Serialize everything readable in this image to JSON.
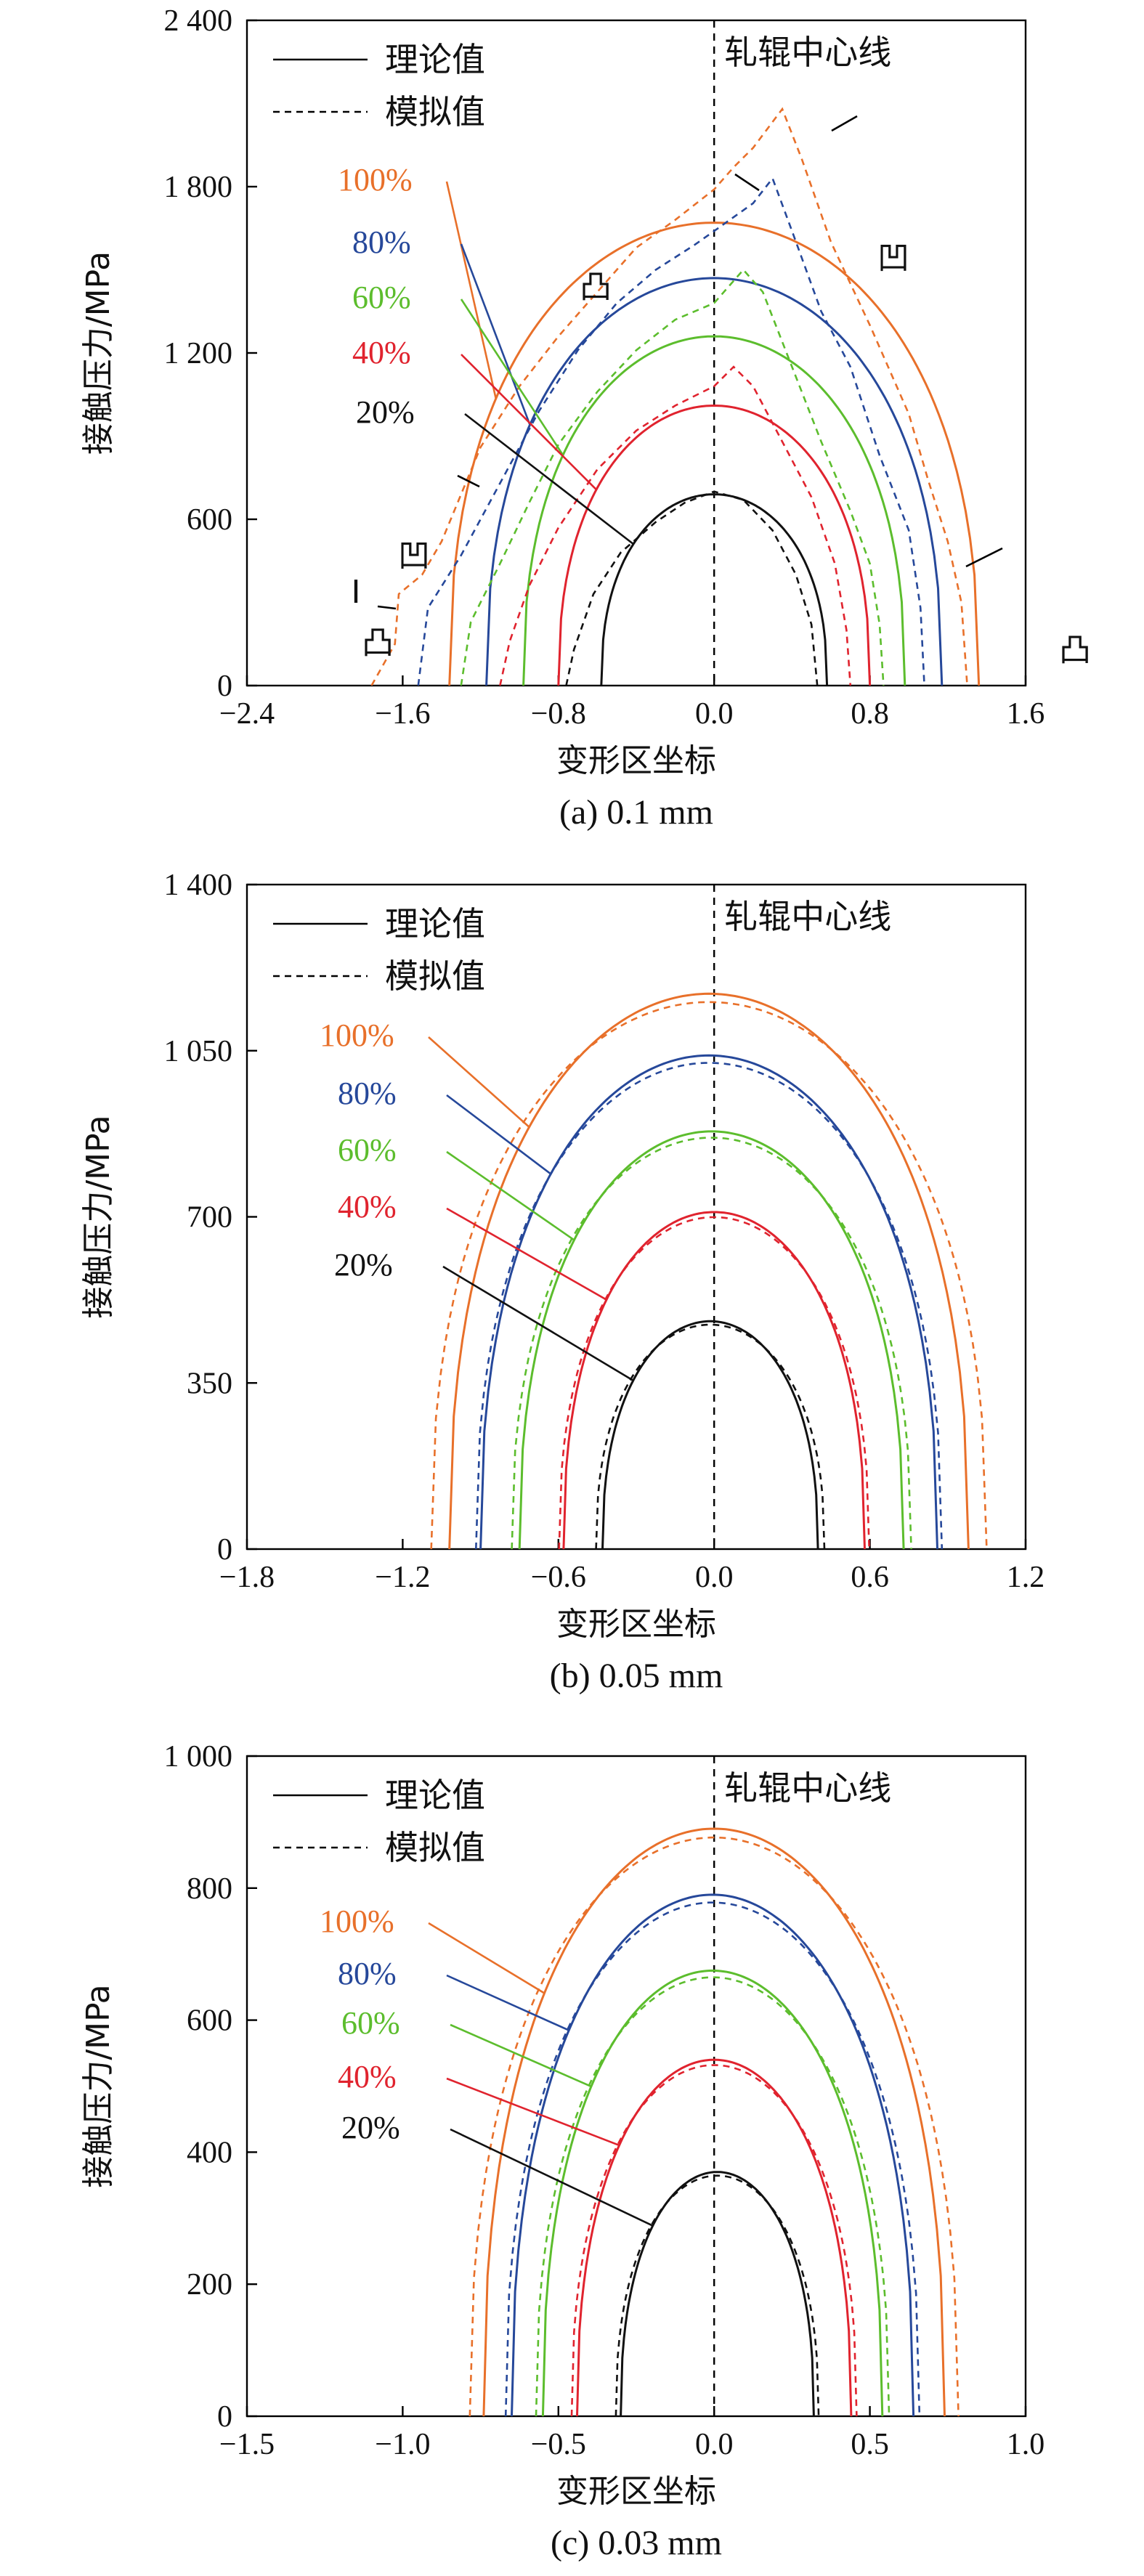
{
  "colors": {
    "100%": "#e8702a",
    "80%": "#26489a",
    "60%": "#5cbd2d",
    "40%": "#e0232e",
    "20%": "#111111",
    "axis": "#000000"
  },
  "chart_data": [
    {
      "type": "line",
      "caption": "(a) 0.1 mm",
      "xlabel": "变形区坐标",
      "ylabel": "接触压力/MPa",
      "xlim": [
        -2.4,
        1.6
      ],
      "ylim": [
        0,
        2400
      ],
      "xticks": [
        "−2.4",
        "−1.6",
        "−0.8",
        "0.0",
        "0.8",
        "1.6"
      ],
      "yticks": [
        "0",
        "600",
        "1 200",
        "1 800",
        "2 400"
      ],
      "legend": {
        "solid": "理论值",
        "dashed": "模拟值"
      },
      "center_label": "轧辊中心线",
      "annotations": [
        "凸",
        "凹",
        "凸",
        "凹",
        "凸",
        "I"
      ],
      "series": [
        {
          "name": "100%",
          "theoretical": {
            "xmin": -1.36,
            "xmax": 1.36,
            "peak": 1670
          },
          "simulated": [
            [
              -1.76,
              0
            ],
            [
              -1.64,
              150
            ],
            [
              -1.62,
              330
            ],
            [
              -1.5,
              400
            ],
            [
              -1.4,
              520
            ],
            [
              -1.2,
              860
            ],
            [
              -1.0,
              1080
            ],
            [
              -0.8,
              1260
            ],
            [
              -0.6,
              1420
            ],
            [
              -0.4,
              1580
            ],
            [
              -0.2,
              1680
            ],
            [
              0.0,
              1790
            ],
            [
              0.1,
              1870
            ],
            [
              0.2,
              1940
            ],
            [
              0.35,
              2080
            ],
            [
              0.45,
              1900
            ],
            [
              0.6,
              1600
            ],
            [
              0.8,
              1300
            ],
            [
              1.0,
              980
            ],
            [
              1.1,
              740
            ],
            [
              1.2,
              520
            ],
            [
              1.27,
              300
            ],
            [
              1.3,
              0
            ]
          ]
        },
        {
          "name": "80%",
          "theoretical": {
            "xmin": -1.17,
            "xmax": 1.17,
            "peak": 1470
          },
          "simulated": [
            [
              -1.52,
              0
            ],
            [
              -1.47,
              280
            ],
            [
              -1.3,
              470
            ],
            [
              -1.1,
              730
            ],
            [
              -0.9,
              990
            ],
            [
              -0.7,
              1210
            ],
            [
              -0.5,
              1380
            ],
            [
              -0.3,
              1500
            ],
            [
              -0.1,
              1590
            ],
            [
              0.0,
              1640
            ],
            [
              0.2,
              1740
            ],
            [
              0.3,
              1830
            ],
            [
              0.4,
              1640
            ],
            [
              0.55,
              1350
            ],
            [
              0.7,
              1150
            ],
            [
              0.85,
              830
            ],
            [
              1.0,
              560
            ],
            [
              1.06,
              280
            ],
            [
              1.08,
              0
            ]
          ]
        },
        {
          "name": "60%",
          "theoretical": {
            "xmin": -0.98,
            "xmax": 0.98,
            "peak": 1260
          },
          "simulated": [
            [
              -1.3,
              0
            ],
            [
              -1.25,
              230
            ],
            [
              -1.1,
              440
            ],
            [
              -0.95,
              660
            ],
            [
              -0.8,
              870
            ],
            [
              -0.6,
              1060
            ],
            [
              -0.4,
              1210
            ],
            [
              -0.2,
              1320
            ],
            [
              0.0,
              1380
            ],
            [
              0.15,
              1500
            ],
            [
              0.25,
              1420
            ],
            [
              0.4,
              1150
            ],
            [
              0.55,
              880
            ],
            [
              0.7,
              630
            ],
            [
              0.8,
              440
            ],
            [
              0.85,
              220
            ],
            [
              0.87,
              0
            ]
          ]
        },
        {
          "name": "40%",
          "theoretical": {
            "xmin": -0.8,
            "xmax": 0.8,
            "peak": 1010
          },
          "simulated": [
            [
              -1.1,
              0
            ],
            [
              -1.05,
              160
            ],
            [
              -0.95,
              360
            ],
            [
              -0.8,
              570
            ],
            [
              -0.6,
              780
            ],
            [
              -0.4,
              920
            ],
            [
              -0.2,
              1010
            ],
            [
              0.0,
              1080
            ],
            [
              0.1,
              1150
            ],
            [
              0.2,
              1080
            ],
            [
              0.35,
              880
            ],
            [
              0.5,
              680
            ],
            [
              0.62,
              440
            ],
            [
              0.68,
              200
            ],
            [
              0.7,
              0
            ]
          ]
        },
        {
          "name": "20%",
          "theoretical": {
            "xmin": -0.58,
            "xmax": 0.58,
            "peak": 690
          },
          "simulated": [
            [
              -0.76,
              0
            ],
            [
              -0.72,
              130
            ],
            [
              -0.62,
              330
            ],
            [
              -0.48,
              480
            ],
            [
              -0.3,
              590
            ],
            [
              -0.15,
              660
            ],
            [
              0.0,
              700
            ],
            [
              0.15,
              670
            ],
            [
              0.3,
              560
            ],
            [
              0.42,
              400
            ],
            [
              0.5,
              220
            ],
            [
              0.53,
              0
            ]
          ]
        }
      ]
    },
    {
      "type": "line",
      "caption": "(b) 0.05 mm",
      "xlabel": "变形区坐标",
      "ylabel": "接触压力/MPa",
      "xlim": [
        -1.8,
        1.2
      ],
      "ylim": [
        0,
        1400
      ],
      "xticks": [
        "−1.8",
        "−1.2",
        "−0.6",
        "0.0",
        "0.6",
        "1.2"
      ],
      "yticks": [
        "0",
        "350",
        "700",
        "1 050",
        "1 400"
      ],
      "legend": {
        "solid": "理论值",
        "dashed": "模拟值"
      },
      "center_label": "轧辊中心线",
      "series": [
        {
          "name": "100%",
          "theoretical": {
            "xmin": -1.02,
            "xmax": 0.98,
            "peak": 1170
          },
          "sim_scale": 1.07
        },
        {
          "name": "80%",
          "theoretical": {
            "xmin": -0.9,
            "xmax": 0.86,
            "peak": 1040
          },
          "sim_scale": 1.02
        },
        {
          "name": "60%",
          "theoretical": {
            "xmin": -0.75,
            "xmax": 0.73,
            "peak": 880
          },
          "sim_scale": 1.04
        },
        {
          "name": "40%",
          "theoretical": {
            "xmin": -0.58,
            "xmax": 0.58,
            "peak": 710
          },
          "sim_scale": 1.03
        },
        {
          "name": "20%",
          "theoretical": {
            "xmin": -0.43,
            "xmax": 0.4,
            "peak": 480
          },
          "sim_scale": 1.06
        }
      ]
    },
    {
      "type": "line",
      "caption": "(c) 0.03 mm",
      "xlabel": "变形区坐标",
      "ylabel": "接触压力/MPa",
      "xlim": [
        -1.5,
        1.0
      ],
      "ylim": [
        0,
        1000
      ],
      "xticks": [
        "−1.5",
        "−1.0",
        "−0.5",
        "0.0",
        "0.5",
        "1.0"
      ],
      "yticks": [
        "0",
        "200",
        "400",
        "600",
        "800",
        "1 000"
      ],
      "legend": {
        "solid": "理论值",
        "dashed": "模拟值"
      },
      "center_label": "轧辊中心线",
      "series": [
        {
          "name": "100%",
          "theoretical": {
            "xmin": -0.74,
            "xmax": 0.74,
            "peak": 890
          },
          "sim_scale": 1.06
        },
        {
          "name": "80%",
          "theoretical": {
            "xmin": -0.65,
            "xmax": 0.64,
            "peak": 790
          },
          "sim_scale": 1.03
        },
        {
          "name": "60%",
          "theoretical": {
            "xmin": -0.55,
            "xmax": 0.54,
            "peak": 675
          },
          "sim_scale": 1.04
        },
        {
          "name": "40%",
          "theoretical": {
            "xmin": -0.44,
            "xmax": 0.44,
            "peak": 540
          },
          "sim_scale": 1.04
        },
        {
          "name": "20%",
          "theoretical": {
            "xmin": -0.3,
            "xmax": 0.32,
            "peak": 370
          },
          "sim_scale": 1.05
        }
      ]
    }
  ]
}
